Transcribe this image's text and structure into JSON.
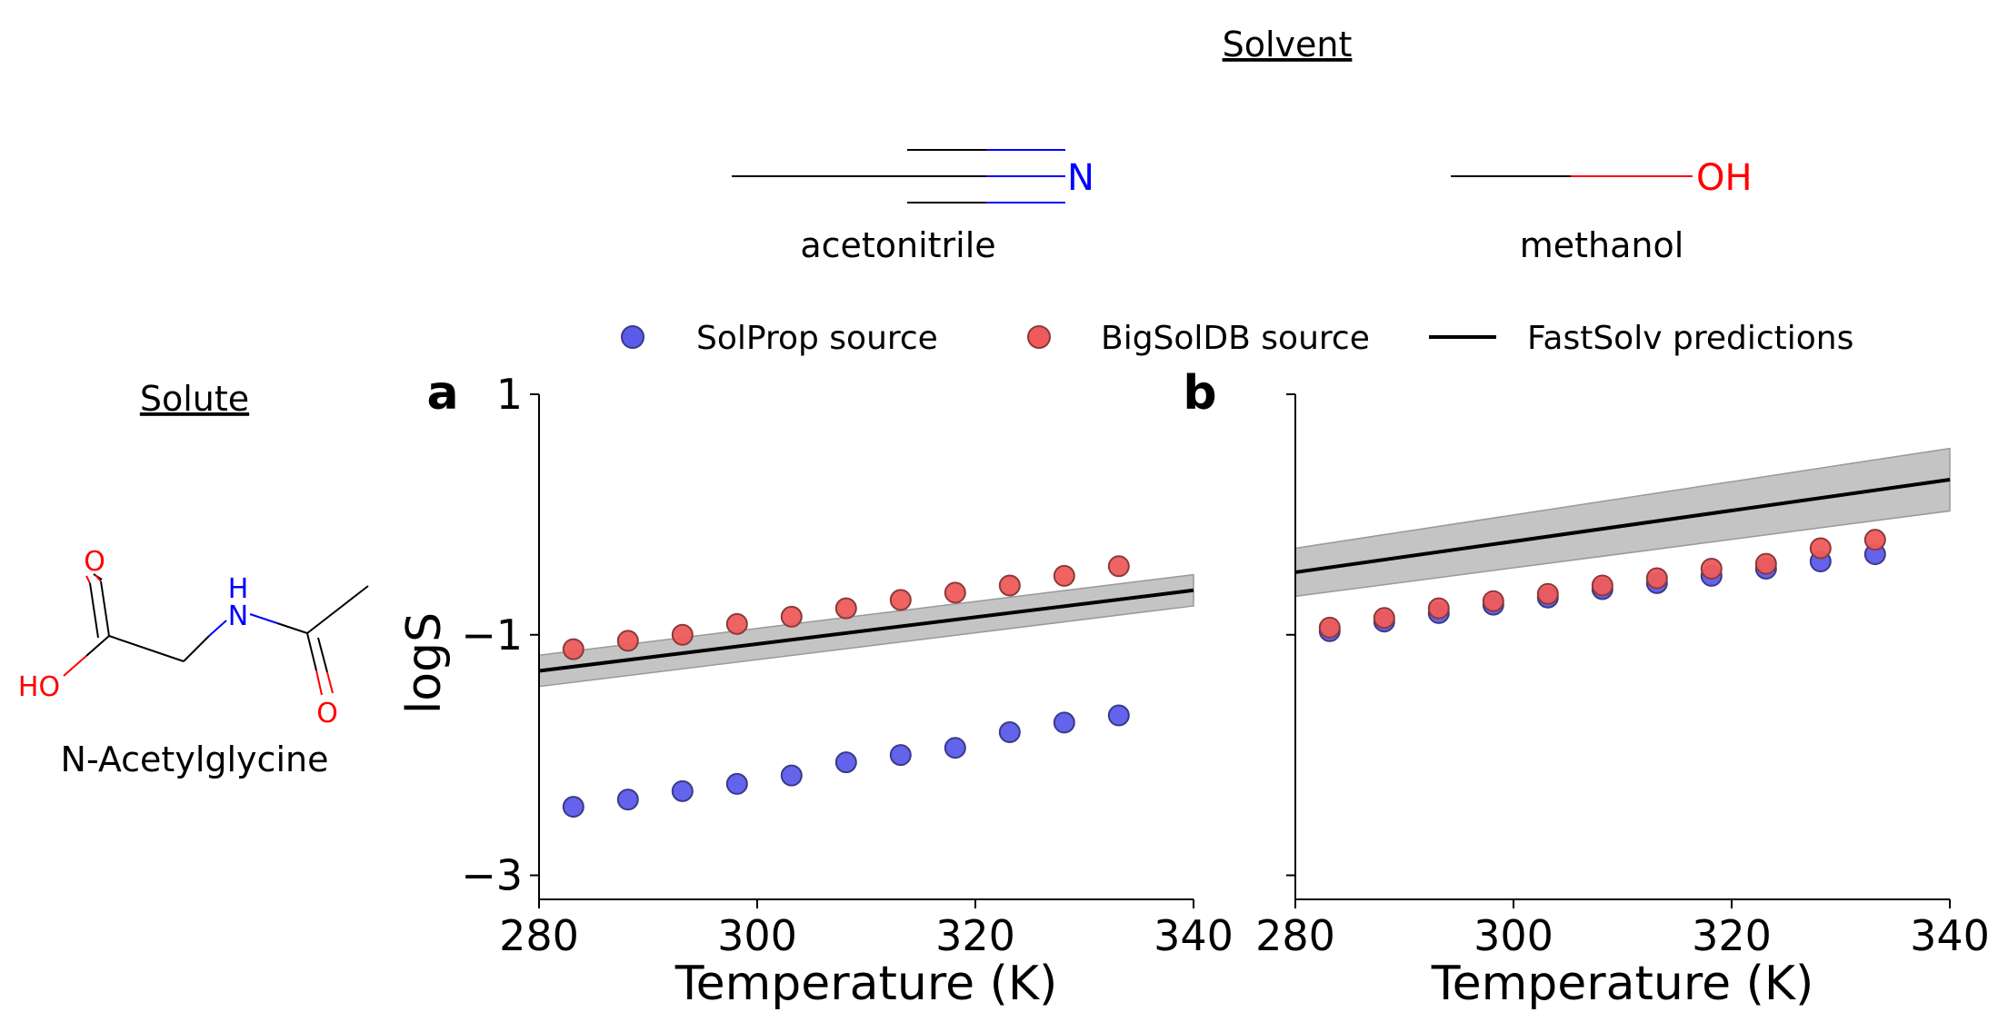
{
  "solvent_heading": "Solvent",
  "solute_heading": "Solute",
  "solvents": [
    {
      "name": "acetonitrile",
      "atom_label": "N",
      "atom_color": "#0000ff"
    },
    {
      "name": "methanol",
      "atom_label": "OH",
      "atom_color": "#ff0000"
    }
  ],
  "solute": {
    "name": "N-Acetylglycine",
    "atom_labels": {
      "o_top": "O",
      "ho": "HO",
      "n": "N",
      "h": "H",
      "o_bottom": "O"
    },
    "colors": {
      "oxygen": "#ff0000",
      "nitrogen": "#0000ff"
    }
  },
  "legend": {
    "items": [
      {
        "label": "SolProp source",
        "marker": "circle",
        "color": "#5b5bea"
      },
      {
        "label": "BigSolDB source",
        "marker": "circle",
        "color": "#ef5b5b"
      },
      {
        "label": "FastSolv predictions",
        "marker": "line",
        "color": "#000000"
      }
    ]
  },
  "chart_data": [
    {
      "panel_label": "a",
      "type": "scatter",
      "xlabel": "Temperature (K)",
      "ylabel": "logS",
      "xlim": [
        280,
        340
      ],
      "ylim": [
        -3.2,
        1.0
      ],
      "xticks": [
        280,
        300,
        320,
        340
      ],
      "yticks": [
        1,
        -1,
        -3
      ],
      "ytick_labels": [
        "1",
        "−1",
        "−3"
      ],
      "series": [
        {
          "name": "SolProp source",
          "type": "scatter",
          "color": "#5b5bea",
          "x": [
            283.15,
            288.15,
            293.15,
            298.15,
            303.15,
            308.15,
            313.15,
            318.15,
            323.15,
            328.15,
            333.15
          ],
          "y": [
            -2.43,
            -2.37,
            -2.3,
            -2.24,
            -2.17,
            -2.06,
            -2.0,
            -1.94,
            -1.81,
            -1.73,
            -1.67
          ]
        },
        {
          "name": "BigSolDB source",
          "type": "scatter",
          "color": "#ef5b5b",
          "x": [
            283.15,
            288.15,
            293.15,
            298.15,
            303.15,
            308.15,
            313.15,
            318.15,
            323.15,
            328.15,
            333.15
          ],
          "y": [
            -1.12,
            -1.05,
            -1.0,
            -0.91,
            -0.85,
            -0.78,
            -0.71,
            -0.65,
            -0.59,
            -0.51,
            -0.43
          ]
        },
        {
          "name": "FastSolv predictions",
          "type": "line",
          "color": "#000000",
          "x": [
            280,
            340
          ],
          "y": [
            -1.3,
            -0.63
          ],
          "band_lower": [
            -1.43,
            -0.76
          ],
          "band_upper": [
            -1.17,
            -0.5
          ]
        }
      ]
    },
    {
      "panel_label": "b",
      "type": "scatter",
      "xlabel": "Temperature (K)",
      "ylabel": "",
      "xlim": [
        280,
        340
      ],
      "ylim": [
        -3.2,
        1.0
      ],
      "xticks": [
        280,
        300,
        320,
        340
      ],
      "yticks": [
        1,
        -1,
        -3
      ],
      "ytick_labels": [
        "",
        "",
        ""
      ],
      "series": [
        {
          "name": "SolProp source",
          "type": "scatter",
          "color": "#5b5bea",
          "x": [
            283.15,
            288.15,
            293.15,
            298.15,
            303.15,
            308.15,
            313.15,
            318.15,
            323.15,
            328.15,
            333.15
          ],
          "y": [
            -0.97,
            -0.89,
            -0.82,
            -0.75,
            -0.69,
            -0.62,
            -0.57,
            -0.51,
            -0.45,
            -0.39,
            -0.33
          ]
        },
        {
          "name": "BigSolDB source",
          "type": "scatter",
          "color": "#ef5b5b",
          "x": [
            283.15,
            288.15,
            293.15,
            298.15,
            303.15,
            308.15,
            313.15,
            318.15,
            323.15,
            328.15,
            333.15
          ],
          "y": [
            -0.94,
            -0.86,
            -0.78,
            -0.72,
            -0.66,
            -0.59,
            -0.53,
            -0.45,
            -0.41,
            -0.28,
            -0.21
          ]
        },
        {
          "name": "FastSolv predictions",
          "type": "line",
          "color": "#000000",
          "x": [
            280,
            340
          ],
          "y": [
            -0.48,
            0.29
          ],
          "band_lower": [
            -0.68,
            0.03
          ],
          "band_upper": [
            -0.28,
            0.55
          ]
        }
      ]
    }
  ]
}
